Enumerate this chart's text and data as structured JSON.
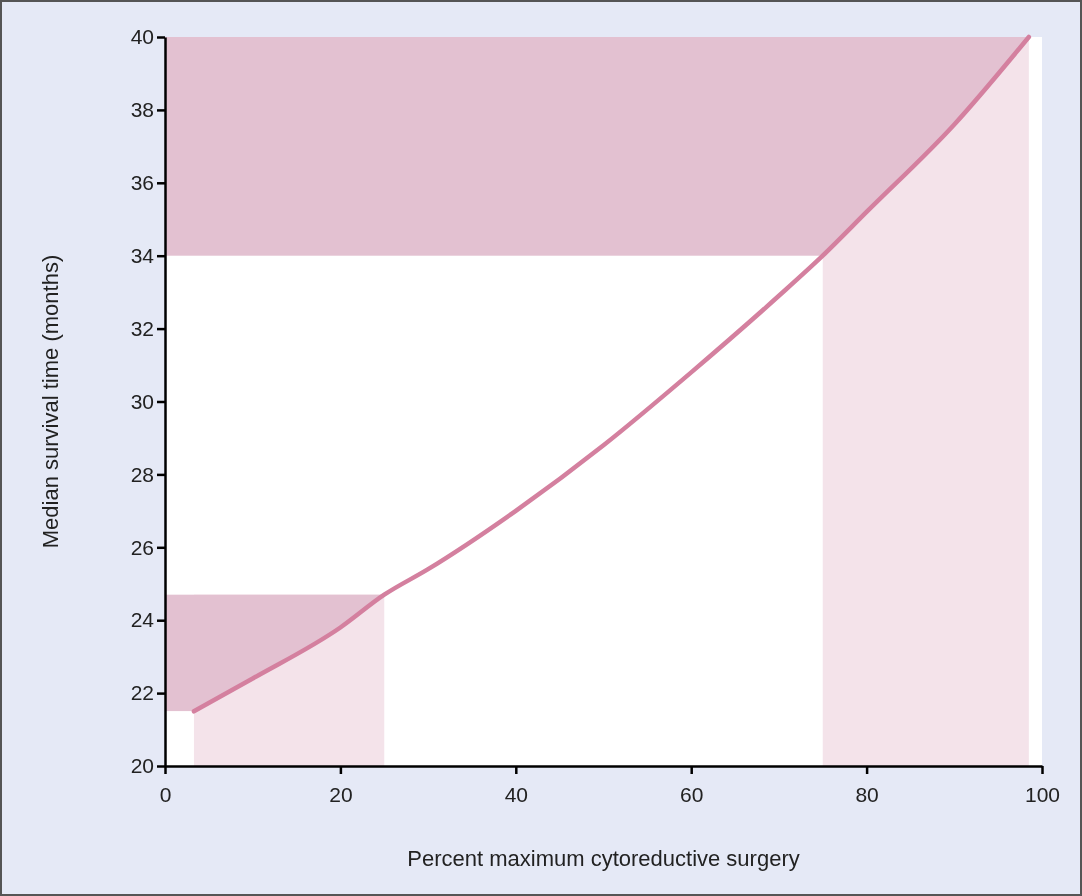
{
  "chart_data": {
    "type": "line",
    "xlabel": "Percent maximum cytoreductive surgery",
    "ylabel": "Median survival time (months)",
    "xlim": [
      0,
      100
    ],
    "xticks": [
      0,
      20,
      40,
      60,
      80,
      100
    ],
    "ylim": [
      20,
      40
    ],
    "yticks": [
      20,
      22,
      24,
      26,
      28,
      30,
      32,
      34,
      36,
      38,
      40
    ],
    "grid": false,
    "marker": "none",
    "line_style": "solid",
    "series": [
      {
        "color": "#d4809f",
        "x": [
          3.3,
          10,
          20,
          25,
          30,
          40,
          50,
          60,
          70,
          75,
          80,
          90,
          98.5
        ],
        "values": [
          21.5,
          22.4,
          23.8,
          24.7,
          25.4,
          27.0,
          28.8,
          30.8,
          32.9,
          34,
          35.2,
          37.6,
          40
        ]
      }
    ],
    "bands": [
      {
        "axis": "x",
        "from": 3.3,
        "to": 25,
        "color": "#f4e3ea"
      },
      {
        "axis": "x",
        "from": 75,
        "to": 98.5,
        "color": "#f4e3ea"
      },
      {
        "axis": "y",
        "from": 21.5,
        "to": 24.7,
        "color": "#e3c1d1"
      },
      {
        "axis": "y",
        "from": 34,
        "to": 40,
        "color": "#e3c1d1"
      }
    ]
  }
}
